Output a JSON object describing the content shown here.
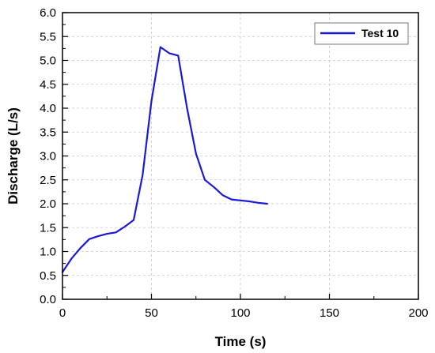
{
  "chart_data": {
    "type": "line",
    "title": "",
    "xlabel": "Time (s)",
    "ylabel": "Discharge (L/s)",
    "xlim": [
      0,
      200
    ],
    "ylim": [
      0.0,
      6.0
    ],
    "xticks": [
      "0",
      "50",
      "100",
      "150",
      "200"
    ],
    "yticks": [
      "0.0",
      "0.5",
      "1.0",
      "1.5",
      "2.0",
      "2.5",
      "3.0",
      "3.5",
      "4.0",
      "4.5",
      "5.0",
      "5.5",
      "6.0"
    ],
    "grid": true,
    "legend_position": "top-right",
    "series": [
      {
        "name": "Test 10",
        "color": "#1a1ad6",
        "x": [
          0,
          5,
          10,
          15,
          20,
          25,
          30,
          35,
          40,
          45,
          50,
          55,
          60,
          65,
          70,
          75,
          80,
          85,
          90,
          95,
          100,
          105,
          110,
          115
        ],
        "y": [
          0.57,
          0.85,
          1.07,
          1.26,
          1.32,
          1.37,
          1.4,
          1.52,
          1.66,
          2.6,
          4.15,
          5.28,
          5.15,
          5.1,
          4.0,
          3.05,
          2.5,
          2.35,
          2.18,
          2.09,
          2.07,
          2.05,
          2.02,
          2.0
        ]
      }
    ]
  }
}
